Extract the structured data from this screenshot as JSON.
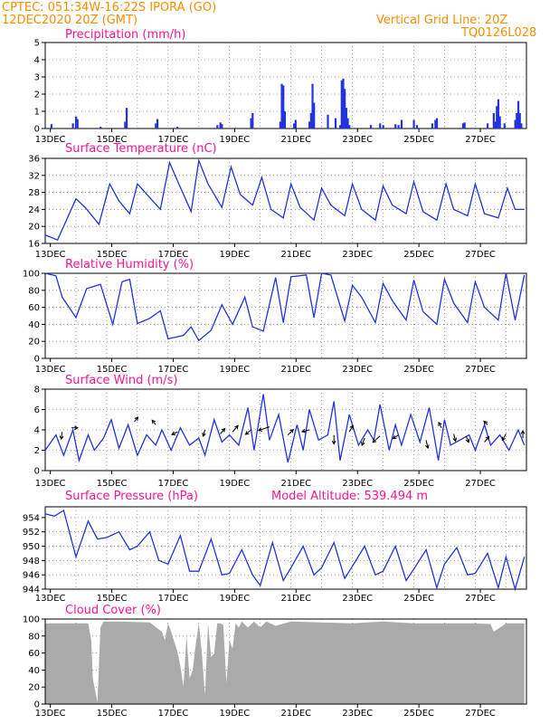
{
  "header": {
    "line1": "CPTEC:   051:34W-16:22S   IPORA (GO)",
    "line2": "12DEC2020 20Z (GMT)",
    "right1": "Vertical Grid Line: 20Z",
    "right2": "TQ0126L028"
  },
  "x_tick_labels": [
    "13DEC",
    "15DEC",
    "17DEC",
    "19DEC",
    "21DEC",
    "23DEC",
    "25DEC",
    "27DEC"
  ],
  "colors": {
    "line": "#2233dd",
    "title": "#ff1493",
    "header": "#ff8c00",
    "cloud": "#aaaaaa",
    "arrow": "#000000"
  },
  "chart_data": [
    {
      "type": "bar",
      "title": "Precipitation (mm/h)",
      "ylim": [
        0,
        5
      ],
      "yticks": [
        0,
        1,
        2,
        3,
        4,
        5
      ],
      "x_unit": "day offset from 12DEC20Z",
      "bars": [
        [
          0.2,
          0.25
        ],
        [
          0.9,
          0.3
        ],
        [
          1.0,
          0.7
        ],
        [
          1.05,
          0.55
        ],
        [
          1.8,
          0.1
        ],
        [
          2.6,
          0.4
        ],
        [
          2.65,
          1.2
        ],
        [
          3.6,
          0.3
        ],
        [
          3.65,
          0.55
        ],
        [
          4.3,
          0.1
        ],
        [
          5.6,
          0.2
        ],
        [
          5.7,
          0.35
        ],
        [
          5.75,
          0.25
        ],
        [
          6.7,
          0.6
        ],
        [
          6.75,
          0.9
        ],
        [
          7.65,
          0.4
        ],
        [
          7.7,
          2.6
        ],
        [
          7.75,
          2.5
        ],
        [
          7.8,
          1.0
        ],
        [
          8.1,
          0.3
        ],
        [
          8.15,
          0.5
        ],
        [
          8.6,
          0.4
        ],
        [
          8.65,
          0.9
        ],
        [
          8.7,
          2.6
        ],
        [
          8.75,
          1.5
        ],
        [
          9.2,
          0.8
        ],
        [
          9.45,
          0.6
        ],
        [
          9.6,
          0.2
        ],
        [
          9.65,
          2.8
        ],
        [
          9.7,
          2.9
        ],
        [
          9.75,
          2.3
        ],
        [
          9.8,
          1.2
        ],
        [
          9.85,
          0.6
        ],
        [
          9.9,
          0.2
        ],
        [
          10.6,
          0.2
        ],
        [
          10.9,
          0.3
        ],
        [
          11.0,
          0.2
        ],
        [
          11.4,
          0.25
        ],
        [
          11.5,
          0.2
        ],
        [
          11.6,
          0.5
        ],
        [
          12.0,
          0.5
        ],
        [
          12.1,
          0.2
        ],
        [
          12.6,
          0.3
        ],
        [
          12.7,
          0.5
        ],
        [
          12.75,
          0.6
        ],
        [
          13.6,
          0.3
        ],
        [
          13.65,
          0.35
        ],
        [
          14.4,
          0.3
        ],
        [
          14.6,
          0.9
        ],
        [
          14.65,
          0.4
        ],
        [
          14.7,
          1.3
        ],
        [
          14.75,
          1.7
        ],
        [
          14.8,
          0.7
        ],
        [
          14.95,
          0.3
        ],
        [
          15.3,
          0.5
        ],
        [
          15.35,
          0.9
        ],
        [
          15.4,
          1.6
        ],
        [
          15.45,
          0.9
        ],
        [
          15.5,
          0.3
        ]
      ]
    },
    {
      "type": "line",
      "title": "Surface Temperature (nC)",
      "ylim": [
        16,
        36
      ],
      "yticks": [
        16,
        20,
        24,
        28,
        32,
        36
      ],
      "x": [
        0,
        0.4,
        1.0,
        1.3,
        1.75,
        2.1,
        2.4,
        2.75,
        3.0,
        3.25,
        3.75,
        4.05,
        4.35,
        4.75,
        5.0,
        5.3,
        5.75,
        6.05,
        6.35,
        6.75,
        7.05,
        7.35,
        7.75,
        8.0,
        8.3,
        8.75,
        9.0,
        9.3,
        9.75,
        10.0,
        10.3,
        10.75,
        11.0,
        11.3,
        11.75,
        12.0,
        12.3,
        12.75,
        13.05,
        13.3,
        13.75,
        14.0,
        14.3,
        14.75,
        15.05,
        15.3,
        15.6
      ],
      "y": [
        18,
        16.8,
        26.5,
        24.5,
        20.5,
        30,
        26,
        23,
        30,
        28,
        24,
        35,
        30,
        23.5,
        35.5,
        30,
        24.5,
        34,
        27.5,
        25,
        31.5,
        24,
        22,
        30,
        24.5,
        21.5,
        29,
        25,
        22.5,
        30,
        24,
        21.5,
        29.5,
        25,
        23,
        30.5,
        23.5,
        21.5,
        30,
        24,
        22.5,
        30,
        23,
        22,
        29,
        24,
        24
      ]
    },
    {
      "type": "line",
      "title": "Relative Humidity (%)",
      "ylim": [
        0,
        100
      ],
      "yticks": [
        0,
        20,
        40,
        60,
        80,
        100
      ],
      "x": [
        0,
        0.35,
        0.55,
        1.0,
        1.35,
        1.8,
        2.2,
        2.5,
        2.75,
        3.0,
        3.4,
        3.75,
        4.0,
        4.5,
        4.75,
        5.0,
        5.4,
        5.75,
        6.1,
        6.5,
        6.75,
        7.1,
        7.5,
        7.75,
        8.0,
        8.5,
        8.75,
        9.0,
        9.3,
        9.75,
        10.0,
        10.3,
        10.75,
        11.0,
        11.3,
        11.75,
        12.0,
        12.3,
        12.75,
        13.0,
        13.3,
        13.75,
        14.0,
        14.3,
        14.75,
        15.0,
        15.3,
        15.6
      ],
      "y": [
        100,
        97,
        72,
        48,
        82,
        87,
        40,
        90,
        93,
        41,
        47,
        56,
        23,
        27,
        37,
        21,
        33,
        63,
        40,
        72,
        37,
        32,
        95,
        42,
        96,
        98,
        48,
        100,
        98,
        44,
        86,
        72,
        42,
        88,
        68,
        45,
        92,
        55,
        40,
        93,
        65,
        42,
        90,
        60,
        45,
        100,
        45,
        98
      ]
    },
    {
      "type": "line",
      "title": "Surface Wind (m/s)",
      "ylim": [
        0,
        8
      ],
      "yticks": [
        0,
        2,
        4,
        6,
        8
      ],
      "x": [
        0,
        0.35,
        0.6,
        0.9,
        1.1,
        1.4,
        1.6,
        1.9,
        2.15,
        2.4,
        2.7,
        3.0,
        3.3,
        3.6,
        3.8,
        4.1,
        4.4,
        4.7,
        5.0,
        5.2,
        5.5,
        5.75,
        6.0,
        6.3,
        6.6,
        6.8,
        7.1,
        7.3,
        7.6,
        7.9,
        8.2,
        8.4,
        8.6,
        8.9,
        9.2,
        9.4,
        9.6,
        9.9,
        10.2,
        10.5,
        10.7,
        10.9,
        11.2,
        11.4,
        11.6,
        11.9,
        12.2,
        12.5,
        12.8,
        13.0,
        13.2,
        13.5,
        13.8,
        14.0,
        14.3,
        14.5,
        14.8,
        15.1,
        15.4,
        15.6
      ],
      "y": [
        2,
        3.5,
        1.5,
        4,
        1,
        3.5,
        2,
        3.2,
        5,
        2.2,
        4.5,
        1.5,
        3.5,
        2.5,
        4,
        2,
        4.2,
        2.5,
        3.2,
        1.5,
        5,
        2.8,
        3.5,
        2.5,
        6.2,
        2,
        7.5,
        3,
        5.5,
        0.8,
        4.5,
        2,
        6,
        3,
        3.5,
        6.8,
        1,
        5.5,
        2.5,
        4,
        3,
        6.5,
        2,
        4.5,
        2.5,
        5.5,
        2.8,
        6.2,
        1,
        5,
        2.5,
        3,
        3.5,
        2,
        4.5,
        2.5,
        3.5,
        2,
        4,
        2.5
      ],
      "arrows": [
        [
          0.55,
          3.8,
          -0.1,
          -0.8
        ],
        [
          0.85,
          4.2,
          0.7,
          0
        ],
        [
          2.9,
          4.8,
          0.4,
          0.5
        ],
        [
          3.6,
          4.5,
          -0.4,
          0.5
        ],
        [
          4.3,
          3.8,
          -0.6,
          -0.3
        ],
        [
          5.2,
          4.0,
          -0.2,
          -0.7
        ],
        [
          5.7,
          3.6,
          0.5,
          0.6
        ],
        [
          6.1,
          3.8,
          0.6,
          0.7
        ],
        [
          6.7,
          4.0,
          -0.6,
          -0.5
        ],
        [
          7.3,
          4.3,
          -1.2,
          -0.4
        ],
        [
          7.9,
          3.5,
          0.6,
          0.6
        ],
        [
          8.6,
          4.0,
          -0.8,
          -0.2
        ],
        [
          9.4,
          3.5,
          0,
          -1.0
        ],
        [
          9.9,
          3.8,
          0.4,
          0.7
        ],
        [
          10.4,
          3.2,
          -0.3,
          -0.8
        ],
        [
          10.9,
          3.4,
          -0.8,
          -0.7
        ],
        [
          11.5,
          3.5,
          -0.6,
          -0.4
        ],
        [
          12.4,
          3.0,
          0.2,
          -0.9
        ],
        [
          12.9,
          4.2,
          -0.3,
          0.6
        ],
        [
          13.3,
          3.6,
          0.2,
          -0.8
        ],
        [
          13.7,
          3.4,
          0.3,
          -0.7
        ],
        [
          14.3,
          2.8,
          0.5,
          0.6
        ],
        [
          14.4,
          4.5,
          -0.4,
          0.4
        ],
        [
          15.0,
          3.6,
          -0.4,
          -0.7
        ],
        [
          15.55,
          3.2,
          0,
          0.8
        ]
      ]
    },
    {
      "type": "line",
      "title": "Surface Pressure (hPa)",
      "annotation": "Model Altitude: 539.494 m",
      "ylim": [
        944,
        955.5
      ],
      "yticks": [
        944,
        946,
        948,
        950,
        952,
        954
      ],
      "x": [
        0,
        0.3,
        0.6,
        1.0,
        1.4,
        1.7,
        2.0,
        2.4,
        2.75,
        3.0,
        3.4,
        3.7,
        4.0,
        4.4,
        4.7,
        5.0,
        5.4,
        5.75,
        6.0,
        6.4,
        6.75,
        7.0,
        7.4,
        7.75,
        8.0,
        8.4,
        8.75,
        9.0,
        9.4,
        9.75,
        10.0,
        10.4,
        10.75,
        11.0,
        11.4,
        11.75,
        12.0,
        12.4,
        12.75,
        13.0,
        13.4,
        13.75,
        14.0,
        14.4,
        14.75,
        15.0,
        15.3,
        15.6
      ],
      "y": [
        954.5,
        954.2,
        955,
        948.5,
        953.5,
        951,
        951.2,
        952,
        949.5,
        950,
        952,
        948,
        947.5,
        951.5,
        946.5,
        946.5,
        951,
        946,
        946.2,
        949.5,
        946,
        944.5,
        950.5,
        945.2,
        947,
        950,
        946,
        947,
        950.5,
        945.5,
        947.2,
        950,
        946,
        946.5,
        950,
        945.2,
        946.8,
        949.5,
        944.2,
        947.5,
        949.8,
        946,
        946.2,
        949,
        944.2,
        948.5,
        944,
        948.5
      ]
    },
    {
      "type": "area",
      "title": "Cloud Cover (%)",
      "ylim": [
        0,
        100
      ],
      "yticks": [
        0,
        20,
        40,
        60,
        80,
        100
      ],
      "x": [
        0,
        1.4,
        1.5,
        1.55,
        1.7,
        1.8,
        1.9,
        2.4,
        3.4,
        3.8,
        3.9,
        4.0,
        4.1,
        4.3,
        4.4,
        4.5,
        4.6,
        4.7,
        4.8,
        4.9,
        5.0,
        5.1,
        5.2,
        5.3,
        5.4,
        5.5,
        5.6,
        5.7,
        5.8,
        5.9,
        6.0,
        6.1,
        6.2,
        6.3,
        6.4,
        6.6,
        6.8,
        7.0,
        7.2,
        7.5,
        8.0,
        9.0,
        10.0,
        11.0,
        12.0,
        13.0,
        14.0,
        14.5,
        14.6,
        15.0,
        15.6
      ],
      "y": [
        95,
        95,
        75,
        30,
        2,
        90,
        97,
        97,
        96,
        85,
        75,
        95,
        85,
        62,
        45,
        20,
        80,
        30,
        40,
        70,
        95,
        60,
        10,
        95,
        55,
        60,
        95,
        95,
        93,
        25,
        75,
        65,
        95,
        90,
        97,
        90,
        97,
        90,
        97,
        92,
        97,
        96,
        95,
        97,
        95,
        95,
        95,
        94,
        85,
        95,
        95
      ]
    }
  ]
}
